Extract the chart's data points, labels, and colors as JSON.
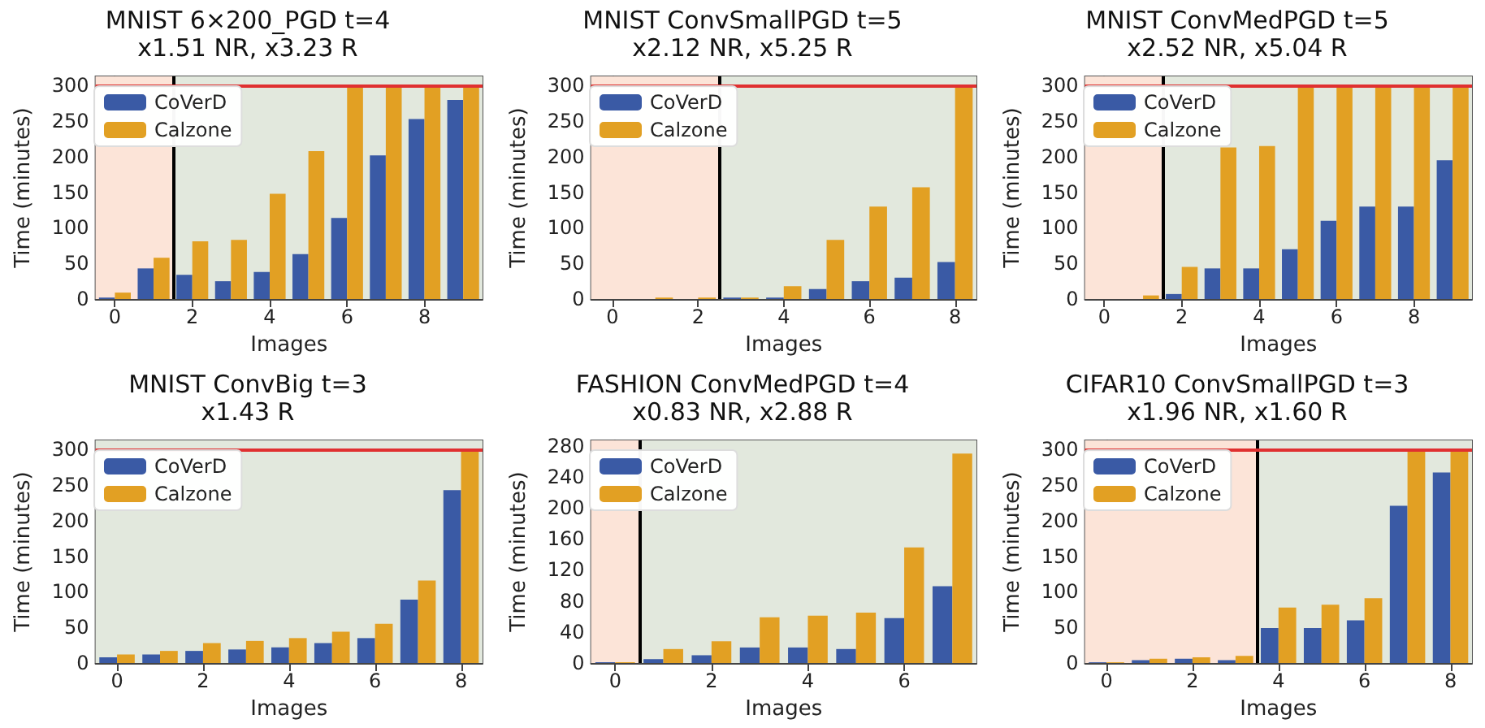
{
  "chart_data": [
    {
      "type": "bar",
      "title": "MNIST 6×200_PGD t=4",
      "subtitle": "x1.51 NR, x3.23 R",
      "xlabel": "Images",
      "ylabel": "Time (minutes)",
      "x": [
        0,
        1,
        2,
        3,
        4,
        5,
        6,
        7,
        8,
        9
      ],
      "series": [
        {
          "name": "CoVerD",
          "color": "#3a5aa5",
          "values": [
            2,
            43,
            34,
            25,
            38,
            63,
            114,
            202,
            253,
            280
          ]
        },
        {
          "name": "Calzone",
          "color": "#e2a023",
          "values": [
            9,
            58,
            81,
            83,
            148,
            208,
            300,
            300,
            300,
            300
          ]
        }
      ],
      "xlim": [
        -0.5,
        9.5
      ],
      "xticks": [
        0,
        2,
        4,
        6,
        8
      ],
      "ylim": [
        0,
        313
      ],
      "yticks": [
        0,
        50,
        100,
        150,
        200,
        250,
        300
      ],
      "legend": "top left",
      "ref_lines": [
        {
          "axis": "x",
          "value": 1.5,
          "color": "#000000"
        },
        {
          "axis": "y",
          "value": 300,
          "color": "#e03030"
        }
      ],
      "bands": [
        {
          "axis": "x",
          "from": -0.5,
          "to": 1.5,
          "color": "#fce4d8"
        },
        {
          "axis": "x",
          "from": 1.5,
          "to": 9.5,
          "color": "#e2e8dd"
        }
      ]
    },
    {
      "type": "bar",
      "title": "MNIST ConvSmallPGD t=5",
      "subtitle": "x2.12 NR, x5.25 R",
      "xlabel": "Images",
      "ylabel": "Time (minutes)",
      "x": [
        0,
        1,
        2,
        3,
        4,
        5,
        6,
        7,
        8
      ],
      "series": [
        {
          "name": "CoVerD",
          "color": "#3a5aa5",
          "values": [
            0,
            0,
            0,
            2,
            2,
            14,
            25,
            30,
            52
          ]
        },
        {
          "name": "Calzone",
          "color": "#e2a023",
          "values": [
            0,
            2,
            2,
            2,
            18,
            83,
            130,
            157,
            300
          ]
        }
      ],
      "xlim": [
        -0.5,
        8.5
      ],
      "xticks": [
        0,
        2,
        4,
        6,
        8
      ],
      "ylim": [
        0,
        313
      ],
      "yticks": [
        0,
        50,
        100,
        150,
        200,
        250,
        300
      ],
      "legend": "top left",
      "ref_lines": [
        {
          "axis": "x",
          "value": 2.5,
          "color": "#000000"
        },
        {
          "axis": "y",
          "value": 300,
          "color": "#e03030"
        }
      ],
      "bands": [
        {
          "axis": "x",
          "from": -0.5,
          "to": 2.5,
          "color": "#fce4d8"
        },
        {
          "axis": "x",
          "from": 2.5,
          "to": 8.5,
          "color": "#e2e8dd"
        }
      ]
    },
    {
      "type": "bar",
      "title": "MNIST ConvMedPGD t=5",
      "subtitle": "x2.52 NR, x5.04 R",
      "xlabel": "Images",
      "ylabel": "Time (minutes)",
      "x": [
        0,
        1,
        2,
        3,
        4,
        5,
        6,
        7,
        8,
        9
      ],
      "series": [
        {
          "name": "CoVerD",
          "color": "#3a5aa5",
          "values": [
            0,
            0,
            7,
            43,
            43,
            70,
            110,
            130,
            130,
            195
          ]
        },
        {
          "name": "Calzone",
          "color": "#e2a023",
          "values": [
            0,
            5,
            45,
            213,
            215,
            300,
            300,
            300,
            300,
            300
          ]
        }
      ],
      "xlim": [
        -0.5,
        9.5
      ],
      "xticks": [
        0,
        2,
        4,
        6,
        8
      ],
      "ylim": [
        0,
        313
      ],
      "yticks": [
        0,
        50,
        100,
        150,
        200,
        250,
        300
      ],
      "legend": "top left",
      "ref_lines": [
        {
          "axis": "x",
          "value": 1.5,
          "color": "#000000"
        },
        {
          "axis": "y",
          "value": 300,
          "color": "#e03030"
        }
      ],
      "bands": [
        {
          "axis": "x",
          "from": -0.5,
          "to": 1.5,
          "color": "#fce4d8"
        },
        {
          "axis": "x",
          "from": 1.5,
          "to": 9.5,
          "color": "#e2e8dd"
        }
      ]
    },
    {
      "type": "bar",
      "title": "MNIST ConvBig t=3",
      "subtitle": "x1.43 R",
      "xlabel": "Images",
      "ylabel": "Time (minutes)",
      "x": [
        0,
        1,
        2,
        3,
        4,
        5,
        6,
        7,
        8
      ],
      "series": [
        {
          "name": "CoVerD",
          "color": "#3a5aa5",
          "values": [
            8,
            12,
            17,
            19,
            22,
            28,
            35,
            89,
            243
          ]
        },
        {
          "name": "Calzone",
          "color": "#e2a023",
          "values": [
            12,
            17,
            28,
            31,
            35,
            44,
            55,
            116,
            300
          ]
        }
      ],
      "xlim": [
        -0.5,
        8.5
      ],
      "xticks": [
        0,
        2,
        4,
        6,
        8
      ],
      "ylim": [
        0,
        313
      ],
      "yticks": [
        0,
        50,
        100,
        150,
        200,
        250,
        300
      ],
      "legend": "top left",
      "ref_lines": [
        {
          "axis": "y",
          "value": 300,
          "color": "#e03030"
        }
      ],
      "bands": [
        {
          "axis": "x",
          "from": -0.5,
          "to": 8.5,
          "color": "#e2e8dd"
        }
      ]
    },
    {
      "type": "bar",
      "title": "FASHION ConvMedPGD t=4",
      "subtitle": "x0.83 NR, x2.88 R",
      "xlabel": "Images",
      "ylabel": "Time (minutes)",
      "x": [
        0,
        1,
        2,
        3,
        4,
        5,
        6,
        7
      ],
      "series": [
        {
          "name": "CoVerD",
          "color": "#3a5aa5",
          "values": [
            1,
            5,
            10,
            20,
            20,
            18,
            58,
            99
          ]
        },
        {
          "name": "Calzone",
          "color": "#e2a023",
          "values": [
            1,
            18,
            28,
            59,
            61,
            65,
            149,
            270
          ]
        }
      ],
      "xlim": [
        -0.5,
        7.5
      ],
      "xticks": [
        0,
        2,
        4,
        6
      ],
      "ylim": [
        0,
        287
      ],
      "yticks": [
        0,
        40,
        80,
        120,
        160,
        200,
        240,
        280
      ],
      "legend": "top left",
      "ref_lines": [
        {
          "axis": "x",
          "value": 0.5,
          "color": "#000000"
        }
      ],
      "bands": [
        {
          "axis": "x",
          "from": -0.5,
          "to": 0.5,
          "color": "#fce4d8"
        },
        {
          "axis": "x",
          "from": 0.5,
          "to": 7.5,
          "color": "#e2e8dd"
        }
      ]
    },
    {
      "type": "bar",
      "title": "CIFAR10 ConvSmallPGD t=3",
      "subtitle": "x1.96 NR, x1.60 R",
      "xlabel": "Images",
      "ylabel": "Time (minutes)",
      "x": [
        0,
        1,
        2,
        3,
        4,
        5,
        6,
        7,
        8
      ],
      "series": [
        {
          "name": "CoVerD",
          "color": "#3a5aa5",
          "values": [
            1,
            4,
            6,
            4,
            49,
            49,
            60,
            221,
            268
          ]
        },
        {
          "name": "Calzone",
          "color": "#e2a023",
          "values": [
            1,
            6,
            8,
            10,
            78,
            82,
            91,
            300,
            300
          ]
        }
      ],
      "xlim": [
        -0.5,
        8.5
      ],
      "xticks": [
        0,
        2,
        4,
        6,
        8
      ],
      "ylim": [
        0,
        313
      ],
      "yticks": [
        0,
        50,
        100,
        150,
        200,
        250,
        300
      ],
      "legend": "top left",
      "ref_lines": [
        {
          "axis": "x",
          "value": 3.5,
          "color": "#000000"
        },
        {
          "axis": "y",
          "value": 300,
          "color": "#e03030"
        }
      ],
      "bands": [
        {
          "axis": "x",
          "from": -0.5,
          "to": 3.5,
          "color": "#fce4d8"
        },
        {
          "axis": "x",
          "from": 3.5,
          "to": 8.5,
          "color": "#e2e8dd"
        }
      ]
    }
  ]
}
